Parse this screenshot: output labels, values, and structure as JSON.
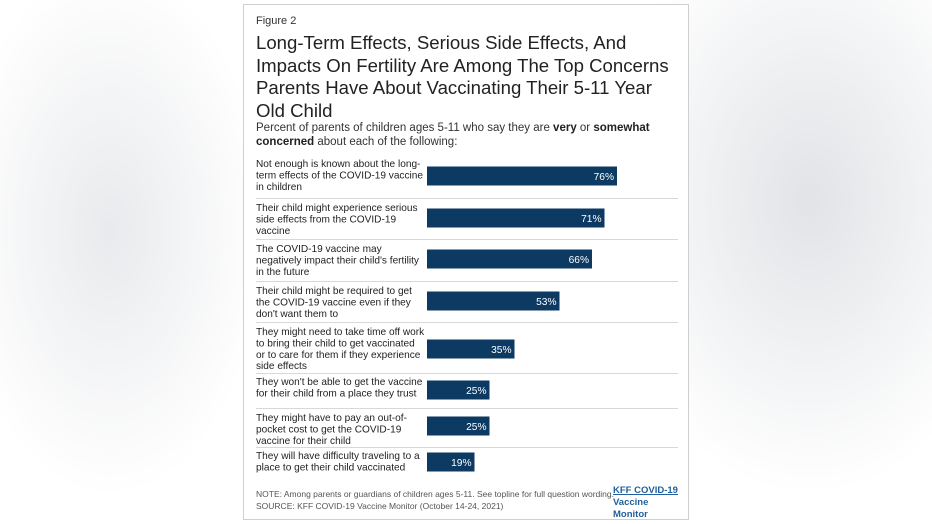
{
  "figure_label": "Figure 2",
  "title": "Long-Term Effects, Serious Side Effects, And Impacts On Fertility Are Among The Top Concerns Parents Have About Vaccinating Their 5-11 Year Old Child",
  "subtitle": {
    "before": "Percent of parents of children ages 5-11 who say they are ",
    "very": "very",
    "or": " or ",
    "somewhat": "somewhat concerned",
    "after": " about each of the following:"
  },
  "chart_data": {
    "type": "bar",
    "orientation": "horizontal",
    "categories": [
      "Not enough is known about the long-term effects of the COVID-19 vaccine in children",
      "Their child might experience serious side effects from the COVID-19 vaccine",
      "The COVID-19 vaccine may negatively impact their child's fertility in the future",
      "Their child might be required to get the COVID-19 vaccine even if they don't want them to",
      "They might need to take time off work to bring their child to get vaccinated or to care for them if they experience side effects",
      "They won't be able to get the vaccine for their child from a place they trust",
      "They might have to pay an out-of-pocket cost to get the COVID-19 vaccine for their child",
      "They will have difficulty traveling to a place to get their child vaccinated"
    ],
    "values": [
      76,
      71,
      66,
      53,
      35,
      25,
      25,
      19
    ],
    "value_labels": [
      "76%",
      "71%",
      "66%",
      "53%",
      "35%",
      "25%",
      "25%",
      "19%"
    ],
    "xlim": [
      0,
      100
    ],
    "grid": false,
    "legend": "none",
    "bar_color": "#0d3a63"
  },
  "note": "NOTE: Among parents or guardians of children ages 5-11. See topline for full question wording.",
  "source": "SOURCE: KFF COVID-19 Vaccine Monitor (October 14-24, 2021)",
  "logo": {
    "line1": "KFF COVID-19",
    "line2": "Vaccine Monitor"
  }
}
